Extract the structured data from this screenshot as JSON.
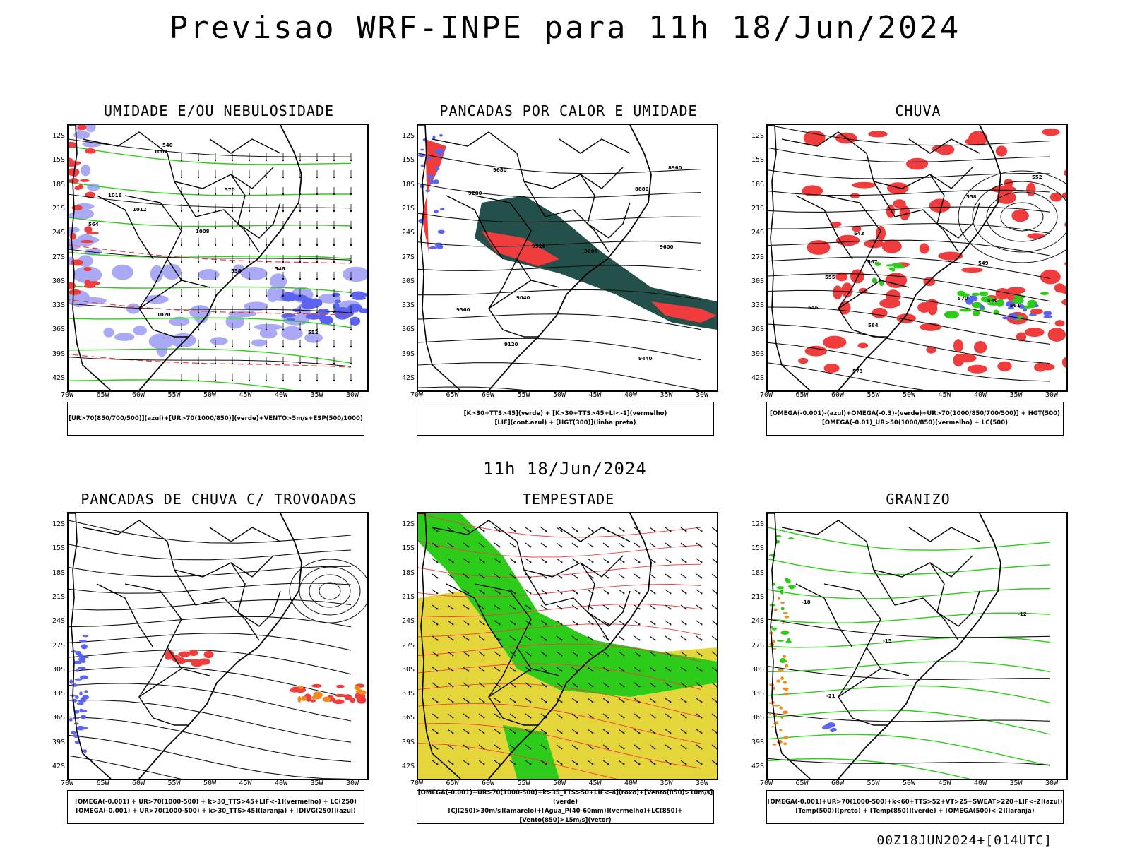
{
  "page_title": "Previsao WRF-INPE  para 11h 18/Jun/2024",
  "mid_timestamp": "11h 18/Jun/2024",
  "run_stamp": "00Z18JUN2024+[014UTC]",
  "lat_ticks": [
    "12S",
    "15S",
    "18S",
    "21S",
    "24S",
    "27S",
    "30S",
    "33S",
    "36S",
    "39S",
    "42S"
  ],
  "lon_ticks": [
    "70W",
    "65W",
    "60W",
    "55W",
    "50W",
    "45W",
    "40W",
    "35W",
    "30W"
  ],
  "colors": {
    "blue": "#5b63f0",
    "lightblue": "#a9a9f5",
    "green": "#2ecc1a",
    "red": "#f03c3c",
    "darkteal": "#24504c",
    "orange": "#f08a1e",
    "yellow": "#e4d63a"
  },
  "panels": [
    {
      "title": "UMIDADE E/OU NEBULOSIDADE",
      "legend1": "[UR>70(850/700/500)](azul)+[UR>70(1000/850)](verde)+VENTO>5m/s+ESP(500/1000)",
      "legend2": "",
      "map_labels": [
        "1012",
        "1016",
        "1008",
        "1004",
        "1020",
        "570",
        "564",
        "558",
        "552",
        "546",
        "540"
      ]
    },
    {
      "title": "PANCADAS POR CALOR E UMIDADE",
      "legend1": "[K>30+TTS>45](verde) + [K>30+TTS>45+LI<-1](vermelho)",
      "legend2": "[LIF](cont.azul) + [HGT(300)](linha preta)",
      "map_labels": [
        "9680",
        "9600",
        "9520",
        "9440",
        "9360",
        "9280",
        "9200",
        "9120",
        "9040",
        "8960",
        "8880"
      ]
    },
    {
      "title": "CHUVA",
      "legend1": "[OMEGA(-0.001)-(azul)+OMEGA(-0.3)-(verde)+UR>70(1000/850/700/500)] + HGT(500)",
      "legend2": "[OMEGA(-0.01)_UR>50(1000/850)(vermelho) + LC(500)",
      "map_labels": [
        "573",
        "570",
        "567",
        "564",
        "561",
        "558",
        "555",
        "552",
        "549",
        "546",
        "543",
        "540"
      ]
    },
    {
      "title": "PANCADAS DE CHUVA C/ TROVOADAS",
      "legend1": "[OMEGA(-0.001) + UR>70(1000-500) + k>30_TTS>45+LIF<-1](vermelho) + LC(250)",
      "legend2": "[OMEGA(-0.001) + UR>70(1000-500) + k>30_TTS>45](laranja) + [DIVG(250)](azul)",
      "map_labels": []
    },
    {
      "title": "TEMPESTADE",
      "legend1": "[OMEGA(-0.001)+UR>70(1000-500)+k>35_TTS>50+LIF<-4](roxo)+[Vento(850)>10m/s](verde)",
      "legend2": "[CJ(250)>30m/s](amarelo)+[Agua_P(40-60mm)](vermelho)+LC(850)+[Vento(850)>15m/s](vetor)",
      "map_labels": []
    },
    {
      "title": "GRANIZO",
      "legend1": "[OMEGA(-0.001)+UR>70(1000-500)+k<60+TTS>52+VT>25+SWEAT>220+LIF<-2](azul)",
      "legend2": "[Temp(500)](preto) + [Temp(850)](verde) + [OMEGA(500)<-2](laranja)",
      "map_labels": [
        "-15",
        "-18",
        "-21",
        "-12"
      ]
    }
  ]
}
